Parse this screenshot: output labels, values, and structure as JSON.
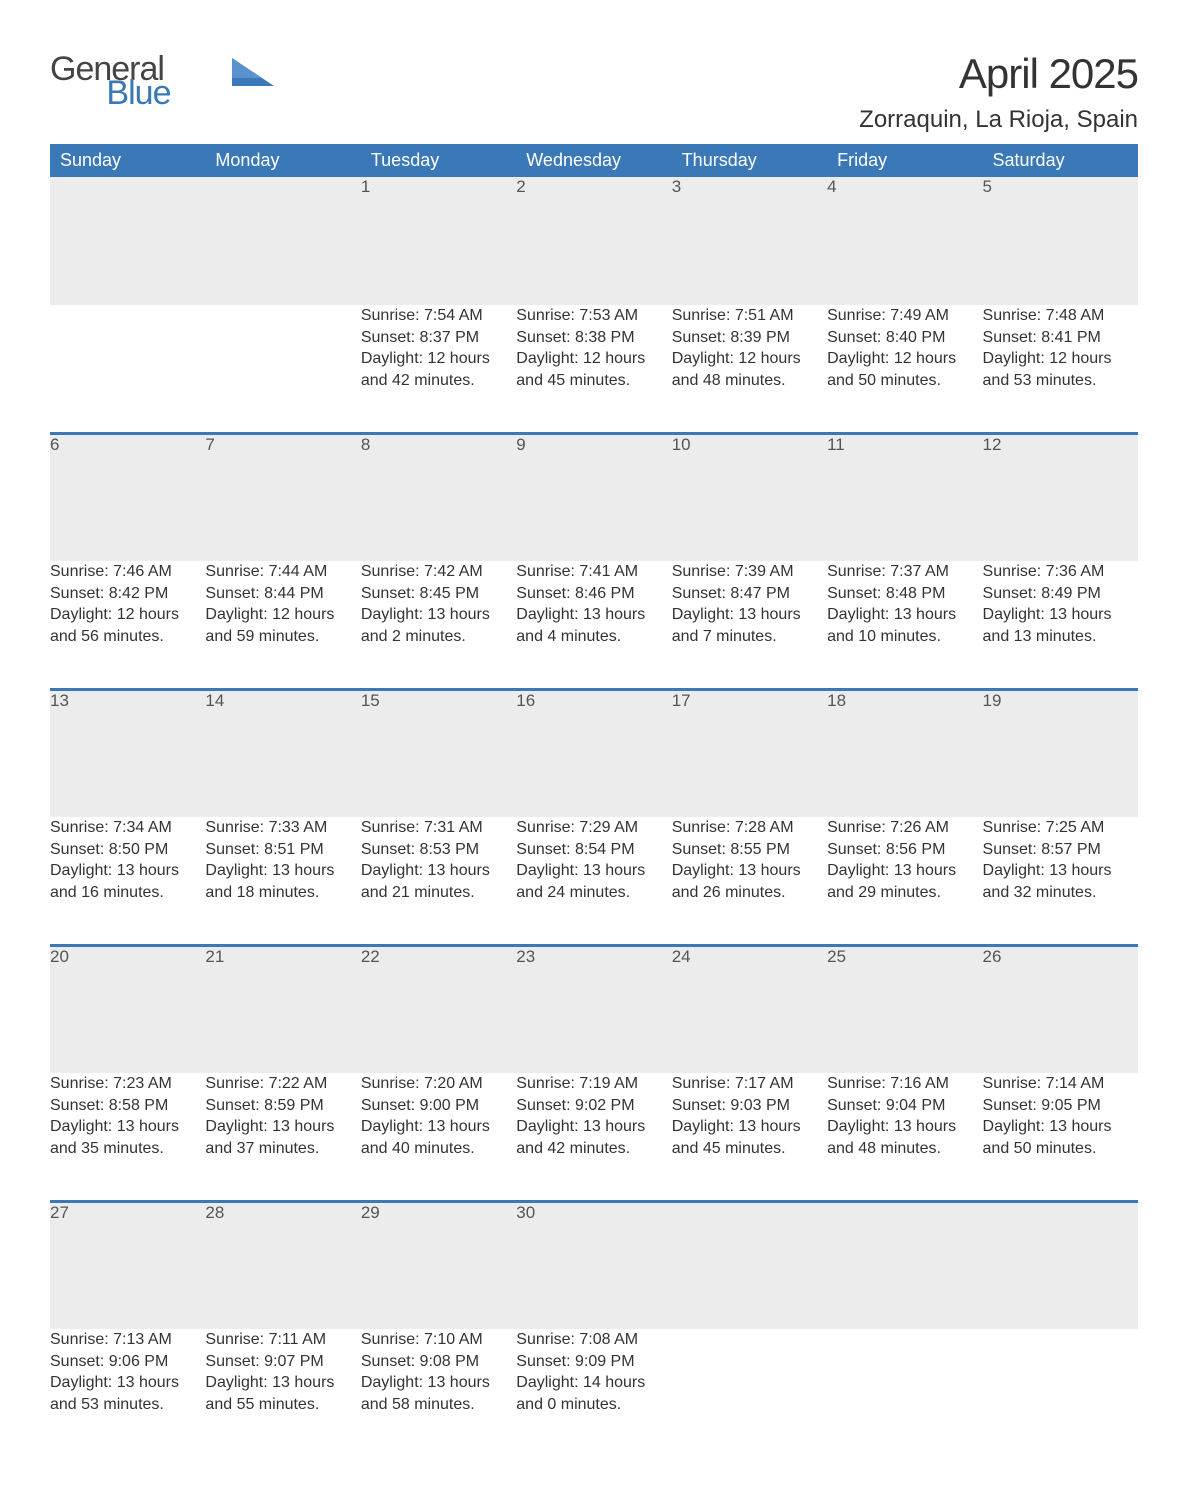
{
  "logo": {
    "word1": "General",
    "word2": "Blue"
  },
  "title": {
    "month": "April 2025",
    "location": "Zorraquin, La Rioja, Spain"
  },
  "colors": {
    "header_bg": "#3b78b8",
    "header_text": "#ffffff",
    "daynum_bg": "#ececec",
    "daynum_border": "#3b78b8",
    "body_text": "#333333",
    "logo_gray": "#444444",
    "logo_blue": "#3b78b8",
    "page_bg": "#ffffff"
  },
  "fonts": {
    "title_size_pt": 32,
    "location_size_pt": 18,
    "header_size_pt": 14,
    "daynum_size_pt": 13,
    "cell_size_pt": 12
  },
  "weekdays": [
    "Sunday",
    "Monday",
    "Tuesday",
    "Wednesday",
    "Thursday",
    "Friday",
    "Saturday"
  ],
  "labels": {
    "sunrise": "Sunrise: ",
    "sunset": "Sunset: ",
    "daylight": "Daylight: "
  },
  "weeks": [
    [
      null,
      null,
      {
        "n": "1",
        "sr": "7:54 AM",
        "ss": "8:37 PM",
        "dl": "12 hours and 42 minutes."
      },
      {
        "n": "2",
        "sr": "7:53 AM",
        "ss": "8:38 PM",
        "dl": "12 hours and 45 minutes."
      },
      {
        "n": "3",
        "sr": "7:51 AM",
        "ss": "8:39 PM",
        "dl": "12 hours and 48 minutes."
      },
      {
        "n": "4",
        "sr": "7:49 AM",
        "ss": "8:40 PM",
        "dl": "12 hours and 50 minutes."
      },
      {
        "n": "5",
        "sr": "7:48 AM",
        "ss": "8:41 PM",
        "dl": "12 hours and 53 minutes."
      }
    ],
    [
      {
        "n": "6",
        "sr": "7:46 AM",
        "ss": "8:42 PM",
        "dl": "12 hours and 56 minutes."
      },
      {
        "n": "7",
        "sr": "7:44 AM",
        "ss": "8:44 PM",
        "dl": "12 hours and 59 minutes."
      },
      {
        "n": "8",
        "sr": "7:42 AM",
        "ss": "8:45 PM",
        "dl": "13 hours and 2 minutes."
      },
      {
        "n": "9",
        "sr": "7:41 AM",
        "ss": "8:46 PM",
        "dl": "13 hours and 4 minutes."
      },
      {
        "n": "10",
        "sr": "7:39 AM",
        "ss": "8:47 PM",
        "dl": "13 hours and 7 minutes."
      },
      {
        "n": "11",
        "sr": "7:37 AM",
        "ss": "8:48 PM",
        "dl": "13 hours and 10 minutes."
      },
      {
        "n": "12",
        "sr": "7:36 AM",
        "ss": "8:49 PM",
        "dl": "13 hours and 13 minutes."
      }
    ],
    [
      {
        "n": "13",
        "sr": "7:34 AM",
        "ss": "8:50 PM",
        "dl": "13 hours and 16 minutes."
      },
      {
        "n": "14",
        "sr": "7:33 AM",
        "ss": "8:51 PM",
        "dl": "13 hours and 18 minutes."
      },
      {
        "n": "15",
        "sr": "7:31 AM",
        "ss": "8:53 PM",
        "dl": "13 hours and 21 minutes."
      },
      {
        "n": "16",
        "sr": "7:29 AM",
        "ss": "8:54 PM",
        "dl": "13 hours and 24 minutes."
      },
      {
        "n": "17",
        "sr": "7:28 AM",
        "ss": "8:55 PM",
        "dl": "13 hours and 26 minutes."
      },
      {
        "n": "18",
        "sr": "7:26 AM",
        "ss": "8:56 PM",
        "dl": "13 hours and 29 minutes."
      },
      {
        "n": "19",
        "sr": "7:25 AM",
        "ss": "8:57 PM",
        "dl": "13 hours and 32 minutes."
      }
    ],
    [
      {
        "n": "20",
        "sr": "7:23 AM",
        "ss": "8:58 PM",
        "dl": "13 hours and 35 minutes."
      },
      {
        "n": "21",
        "sr": "7:22 AM",
        "ss": "8:59 PM",
        "dl": "13 hours and 37 minutes."
      },
      {
        "n": "22",
        "sr": "7:20 AM",
        "ss": "9:00 PM",
        "dl": "13 hours and 40 minutes."
      },
      {
        "n": "23",
        "sr": "7:19 AM",
        "ss": "9:02 PM",
        "dl": "13 hours and 42 minutes."
      },
      {
        "n": "24",
        "sr": "7:17 AM",
        "ss": "9:03 PM",
        "dl": "13 hours and 45 minutes."
      },
      {
        "n": "25",
        "sr": "7:16 AM",
        "ss": "9:04 PM",
        "dl": "13 hours and 48 minutes."
      },
      {
        "n": "26",
        "sr": "7:14 AM",
        "ss": "9:05 PM",
        "dl": "13 hours and 50 minutes."
      }
    ],
    [
      {
        "n": "27",
        "sr": "7:13 AM",
        "ss": "9:06 PM",
        "dl": "13 hours and 53 minutes."
      },
      {
        "n": "28",
        "sr": "7:11 AM",
        "ss": "9:07 PM",
        "dl": "13 hours and 55 minutes."
      },
      {
        "n": "29",
        "sr": "7:10 AM",
        "ss": "9:08 PM",
        "dl": "13 hours and 58 minutes."
      },
      {
        "n": "30",
        "sr": "7:08 AM",
        "ss": "9:09 PM",
        "dl": "14 hours and 0 minutes."
      },
      null,
      null,
      null
    ]
  ]
}
